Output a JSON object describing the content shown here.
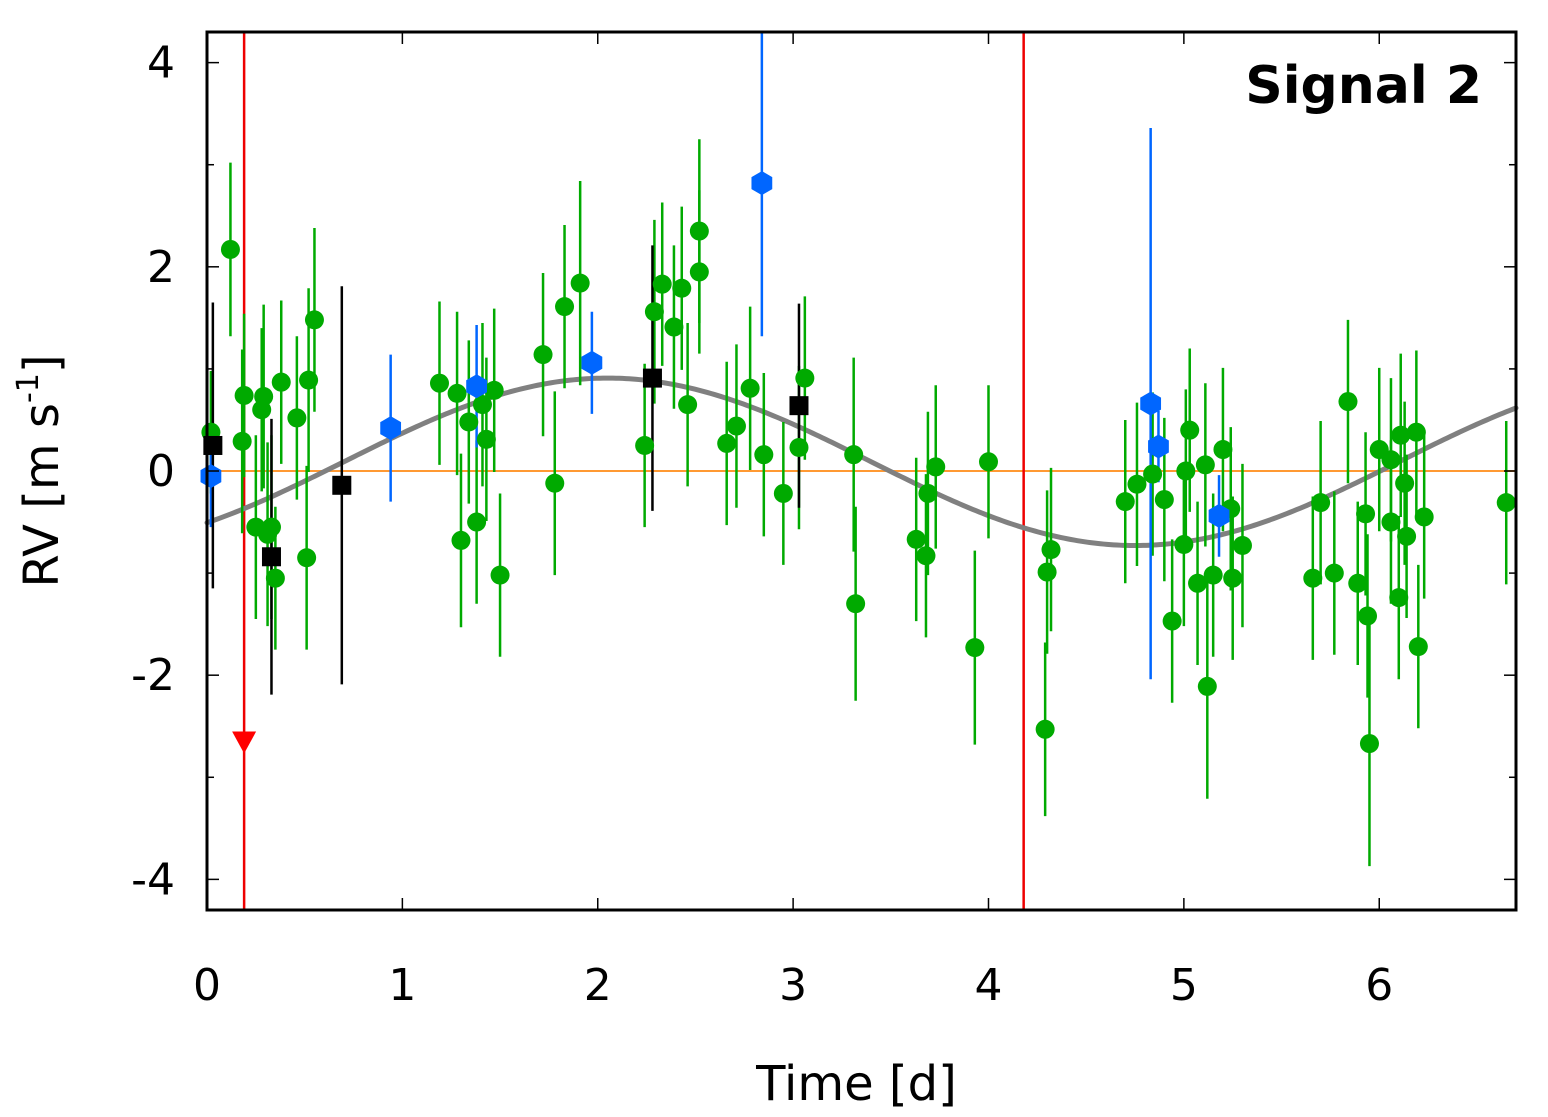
{
  "chart_data": {
    "type": "scatter",
    "annotation": "Signal 2",
    "xlabel": "Time [d]",
    "ylabel": "RV [m s",
    "ylabel_sup": "-1",
    "ylabel_close": "]",
    "xlim": [
      0,
      6.7
    ],
    "ylim": [
      -4.3,
      4.3
    ],
    "x_ticks": [
      0,
      1,
      2,
      3,
      4,
      5,
      6
    ],
    "y_ticks": [
      4,
      2,
      0,
      -2,
      -4
    ],
    "x_tick_labels": [
      "0",
      "1",
      "2",
      "3",
      "4",
      "5",
      "6"
    ],
    "y_tick_labels": [
      "4",
      "2",
      "0",
      "-2",
      "-4"
    ],
    "period": 5.4,
    "model": {
      "name": "Keplerian fit",
      "amplitude": 0.82,
      "peak_time": 2.05,
      "offset": 0.09,
      "color": "#808080"
    },
    "zero_line": {
      "value": 0,
      "color": "#ff9933"
    },
    "vertical_markers": [
      {
        "x": 0.19,
        "color": "#ee0000"
      },
      {
        "x": 4.18,
        "color": "#ee0000"
      }
    ],
    "upper_limit_marker": {
      "x": 0.19,
      "y": -2.65,
      "color": "#ff0000"
    },
    "series": [
      {
        "name": "green",
        "marker": "circle",
        "color": "#00aa00",
        "points": [
          {
            "x": 0.02,
            "y": 0.38,
            "err": 0.6
          },
          {
            "x": 0.12,
            "y": 2.17,
            "err": 0.85
          },
          {
            "x": 0.18,
            "y": 0.29,
            "err": 0.9
          },
          {
            "x": 0.19,
            "y": 0.74,
            "err": 0.8
          },
          {
            "x": 0.25,
            "y": -0.55,
            "err": 0.9
          },
          {
            "x": 0.28,
            "y": 0.6,
            "err": 0.8
          },
          {
            "x": 0.29,
            "y": 0.73,
            "err": 0.9
          },
          {
            "x": 0.31,
            "y": -0.62,
            "err": 0.9
          },
          {
            "x": 0.33,
            "y": -0.55,
            "err": 0.9
          },
          {
            "x": 0.35,
            "y": -1.05,
            "err": 0.7
          },
          {
            "x": 0.38,
            "y": 0.87,
            "err": 0.8
          },
          {
            "x": 0.46,
            "y": 0.52,
            "err": 0.8
          },
          {
            "x": 0.51,
            "y": -0.85,
            "err": 0.9
          },
          {
            "x": 0.52,
            "y": 0.89,
            "err": 0.9
          },
          {
            "x": 0.55,
            "y": 1.48,
            "err": 0.9
          },
          {
            "x": 1.19,
            "y": 0.86,
            "err": 0.8
          },
          {
            "x": 1.28,
            "y": 0.76,
            "err": 0.8
          },
          {
            "x": 1.3,
            "y": -0.68,
            "err": 0.85
          },
          {
            "x": 1.34,
            "y": 0.48,
            "err": 0.8
          },
          {
            "x": 1.38,
            "y": -0.5,
            "err": 0.8
          },
          {
            "x": 1.41,
            "y": 0.65,
            "err": 0.8
          },
          {
            "x": 1.43,
            "y": 0.31,
            "err": 0.8
          },
          {
            "x": 1.47,
            "y": 0.79,
            "err": 0.8
          },
          {
            "x": 1.5,
            "y": -1.02,
            "err": 0.8
          },
          {
            "x": 1.72,
            "y": 1.14,
            "err": 0.8
          },
          {
            "x": 1.78,
            "y": -0.12,
            "err": 0.9
          },
          {
            "x": 1.83,
            "y": 1.61,
            "err": 0.8
          },
          {
            "x": 1.91,
            "y": 1.84,
            "err": 1.0
          },
          {
            "x": 2.24,
            "y": 0.25,
            "err": 0.8
          },
          {
            "x": 2.29,
            "y": 1.56,
            "err": 0.9
          },
          {
            "x": 2.33,
            "y": 1.83,
            "err": 0.8
          },
          {
            "x": 2.39,
            "y": 1.41,
            "err": 0.8
          },
          {
            "x": 2.43,
            "y": 1.79,
            "err": 0.8
          },
          {
            "x": 2.46,
            "y": 0.65,
            "err": 0.8
          },
          {
            "x": 2.52,
            "y": 2.35,
            "err": 0.9
          },
          {
            "x": 2.52,
            "y": 1.95,
            "err": 0.8
          },
          {
            "x": 2.66,
            "y": 0.27,
            "err": 0.8
          },
          {
            "x": 2.71,
            "y": 0.44,
            "err": 0.8
          },
          {
            "x": 2.78,
            "y": 0.81,
            "err": 0.8
          },
          {
            "x": 2.85,
            "y": 0.16,
            "err": 0.8
          },
          {
            "x": 2.95,
            "y": -0.22,
            "err": 0.7
          },
          {
            "x": 3.03,
            "y": 0.23,
            "err": 0.8
          },
          {
            "x": 3.06,
            "y": 0.91,
            "err": 0.8
          },
          {
            "x": 3.31,
            "y": 0.16,
            "err": 0.95
          },
          {
            "x": 3.32,
            "y": -1.3,
            "err": 0.95
          },
          {
            "x": 3.63,
            "y": -0.67,
            "err": 0.8
          },
          {
            "x": 3.68,
            "y": -0.83,
            "err": 0.8
          },
          {
            "x": 3.69,
            "y": -0.22,
            "err": 0.8
          },
          {
            "x": 3.73,
            "y": 0.04,
            "err": 0.8
          },
          {
            "x": 3.93,
            "y": -1.73,
            "err": 0.95
          },
          {
            "x": 4.0,
            "y": 0.09,
            "err": 0.75
          },
          {
            "x": 4.29,
            "y": -2.53,
            "err": 0.85
          },
          {
            "x": 4.3,
            "y": -0.99,
            "err": 0.8
          },
          {
            "x": 4.32,
            "y": -0.77,
            "err": 0.8
          },
          {
            "x": 4.7,
            "y": -0.3,
            "err": 0.8
          },
          {
            "x": 4.76,
            "y": -0.13,
            "err": 0.8
          },
          {
            "x": 4.84,
            "y": -0.03,
            "err": 0.8
          },
          {
            "x": 4.9,
            "y": -0.28,
            "err": 0.8
          },
          {
            "x": 4.94,
            "y": -1.47,
            "err": 0.8
          },
          {
            "x": 5.0,
            "y": -0.72,
            "err": 0.8
          },
          {
            "x": 5.01,
            "y": 0.0,
            "err": 0.8
          },
          {
            "x": 5.03,
            "y": 0.4,
            "err": 0.8
          },
          {
            "x": 5.07,
            "y": -1.1,
            "err": 0.8
          },
          {
            "x": 5.11,
            "y": 0.06,
            "err": 0.8
          },
          {
            "x": 5.12,
            "y": -2.11,
            "err": 1.1
          },
          {
            "x": 5.15,
            "y": -1.02,
            "err": 0.8
          },
          {
            "x": 5.2,
            "y": 0.21,
            "err": 0.8
          },
          {
            "x": 5.24,
            "y": -0.37,
            "err": 0.8
          },
          {
            "x": 5.25,
            "y": -1.05,
            "err": 0.8
          },
          {
            "x": 5.3,
            "y": -0.73,
            "err": 0.8
          },
          {
            "x": 5.66,
            "y": -1.05,
            "err": 0.8
          },
          {
            "x": 5.7,
            "y": -0.31,
            "err": 0.8
          },
          {
            "x": 5.77,
            "y": -1.0,
            "err": 0.8
          },
          {
            "x": 5.84,
            "y": 0.68,
            "err": 0.8
          },
          {
            "x": 5.89,
            "y": -1.1,
            "err": 0.8
          },
          {
            "x": 5.93,
            "y": -0.42,
            "err": 0.8
          },
          {
            "x": 5.94,
            "y": -1.42,
            "err": 0.8
          },
          {
            "x": 5.95,
            "y": -2.67,
            "err": 1.2
          },
          {
            "x": 6.0,
            "y": 0.21,
            "err": 0.8
          },
          {
            "x": 6.06,
            "y": 0.11,
            "err": 0.8
          },
          {
            "x": 6.06,
            "y": -0.5,
            "err": 0.8
          },
          {
            "x": 6.1,
            "y": -1.24,
            "err": 0.8
          },
          {
            "x": 6.11,
            "y": 0.35,
            "err": 0.8
          },
          {
            "x": 6.13,
            "y": -0.12,
            "err": 0.8
          },
          {
            "x": 6.14,
            "y": -0.64,
            "err": 0.8
          },
          {
            "x": 6.19,
            "y": 0.38,
            "err": 0.8
          },
          {
            "x": 6.2,
            "y": -1.72,
            "err": 0.8
          },
          {
            "x": 6.23,
            "y": -0.45,
            "err": 0.8
          },
          {
            "x": 6.65,
            "y": -0.31,
            "err": 0.8
          }
        ]
      },
      {
        "name": "blue",
        "marker": "hexagon",
        "color": "#0066ff",
        "points": [
          {
            "x": 0.02,
            "y": -0.05,
            "err": 0.5
          },
          {
            "x": 0.94,
            "y": 0.42,
            "err": 0.72
          },
          {
            "x": 1.38,
            "y": 0.83,
            "err": 0.6
          },
          {
            "x": 1.97,
            "y": 1.06,
            "err": 0.5
          },
          {
            "x": 2.84,
            "y": 2.82,
            "err": 1.5
          },
          {
            "x": 4.83,
            "y": 0.66,
            "err": 2.7
          },
          {
            "x": 4.87,
            "y": 0.24,
            "err": 0.35
          },
          {
            "x": 5.18,
            "y": -0.44,
            "err": 0.4
          }
        ]
      },
      {
        "name": "black",
        "marker": "square",
        "color": "#000000",
        "points": [
          {
            "x": 0.03,
            "y": 0.25,
            "err": 1.4
          },
          {
            "x": 0.33,
            "y": -0.84,
            "err": 1.35
          },
          {
            "x": 0.69,
            "y": -0.14,
            "err": 1.95
          },
          {
            "x": 2.28,
            "y": 0.91,
            "err": 1.3
          },
          {
            "x": 3.03,
            "y": 0.64,
            "err": 1.0
          }
        ]
      }
    ]
  }
}
